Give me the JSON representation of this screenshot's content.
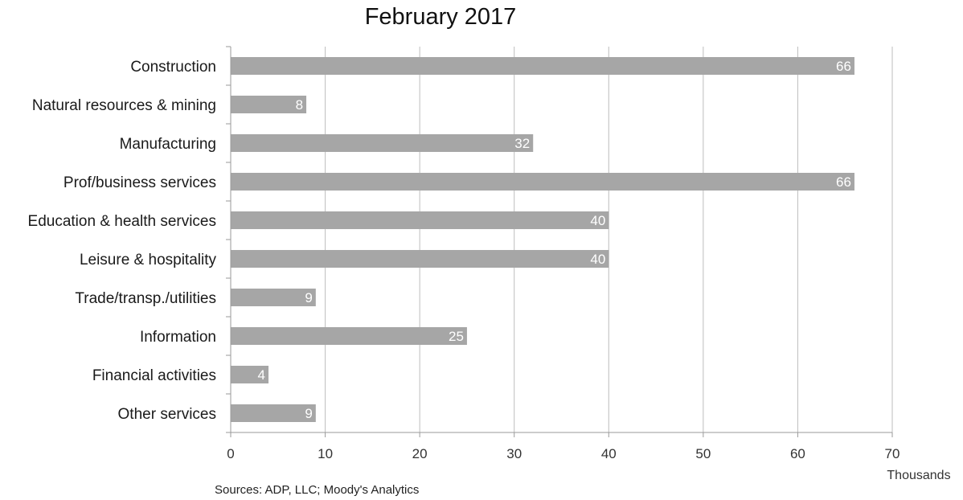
{
  "chart_data": {
    "type": "bar",
    "orientation": "horizontal",
    "title": "February 2017",
    "categories": [
      "Construction",
      "Natural resources & mining",
      "Manufacturing",
      "Prof/business services",
      "Education & health services",
      "Leisure & hospitality",
      "Trade/transp./utilities",
      "Information",
      "Financial activities",
      "Other services"
    ],
    "values": [
      66,
      8,
      32,
      66,
      40,
      40,
      9,
      25,
      4,
      9
    ],
    "data_labels": [
      "66",
      "8",
      "32",
      "66",
      "40",
      "40",
      "9",
      "25",
      "4",
      "9"
    ],
    "xlim": [
      0,
      70
    ],
    "x_ticks": [
      "0",
      "10",
      "20",
      "30",
      "40",
      "50",
      "60",
      "70"
    ],
    "x_unit": "Thousands",
    "source": "Sources: ADP, LLC; Moody's Analytics",
    "grid": true,
    "colors": {
      "bar": "#a6a6a6",
      "grid": "#bdbdbd",
      "data_label": "#ffffff"
    }
  }
}
